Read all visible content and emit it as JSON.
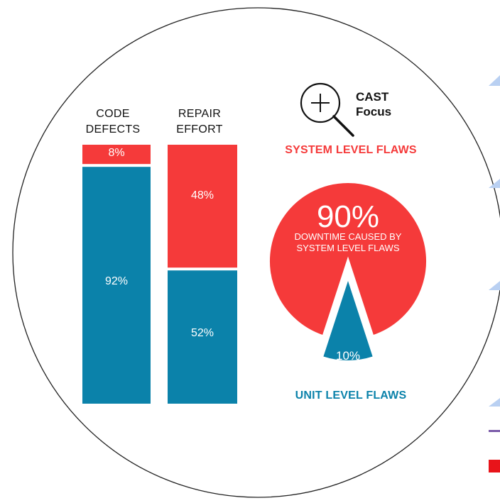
{
  "chart_data": [
    {
      "type": "bar",
      "stacked": true,
      "categories": [
        "CODE DEFECTS",
        "REPAIR EFFORT"
      ],
      "category_lines": [
        [
          "CODE",
          "DEFECTS"
        ],
        [
          "REPAIR",
          "EFFORT"
        ]
      ],
      "series": [
        {
          "values": [
            8,
            48
          ],
          "labels": [
            "8%",
            "48%"
          ],
          "color": "#f53a3a"
        },
        {
          "values": [
            92,
            52
          ],
          "labels": [
            "92%",
            "52%"
          ],
          "color": "#0b82aa"
        }
      ],
      "ylim": [
        0,
        100
      ]
    },
    {
      "type": "pie",
      "slices": [
        {
          "value": 90,
          "label": "90%",
          "caption": "DOWNTIME CAUSED BY SYSTEM LEVEL FLAWS",
          "color": "#f53a3a"
        },
        {
          "value": 10,
          "label": "10%",
          "color": "#0b82aa"
        }
      ]
    }
  ],
  "labels": {
    "bar1_line1": "CODE",
    "bar1_line2": "DEFECTS",
    "bar2_line1": "REPAIR",
    "bar2_line2": "EFFORT",
    "cast_line1": "CAST",
    "cast_line2": "Focus",
    "system_flaws": "SYSTEM LEVEL FLAWS",
    "unit_flaws": "UNIT LEVEL FLAWS",
    "pie_big": "90%",
    "pie_sub_line1": "DOWNTIME CAUSED BY",
    "pie_sub_line2": "SYSTEM LEVEL FLAWS",
    "pie_small": "10%"
  },
  "colors": {
    "red": "#f53a3a",
    "blue": "#0b82aa",
    "outline": "#222222",
    "accent_blue": "#6a8fd8",
    "accent_purple": "#7a5aa8",
    "accent_red": "#e8141a"
  },
  "icons": {
    "magnifier": "magnifier-plus-icon"
  }
}
